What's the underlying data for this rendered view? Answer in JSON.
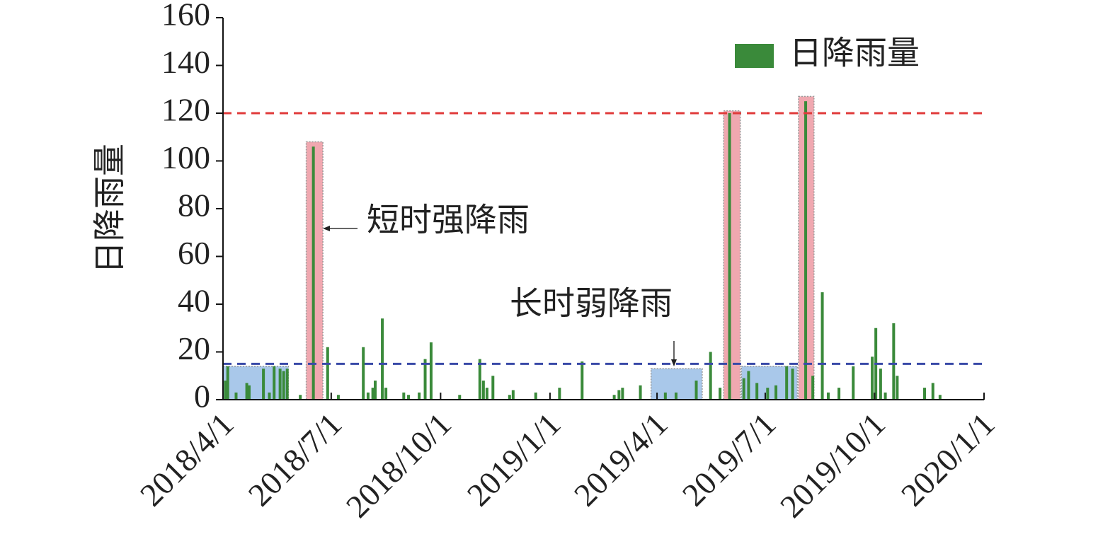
{
  "chart_data": {
    "type": "bar",
    "ylabel": "日降雨量",
    "xlim": [
      "2018/4/1",
      "2020/1/1"
    ],
    "xticks": [
      "2018/4/1",
      "2018/7/1",
      "2018/10/1",
      "2019/1/1",
      "2019/4/1",
      "2019/7/1",
      "2019/10/1",
      "2020/1/1"
    ],
    "ylim": [
      0,
      160
    ],
    "yticks": [
      0,
      20,
      40,
      60,
      80,
      100,
      120,
      140,
      160
    ],
    "legend": "top-right",
    "x": [
      "2018/4/3",
      "2018/4/5",
      "2018/4/12",
      "2018/4/21",
      "2018/4/23",
      "2018/5/5",
      "2018/5/10",
      "2018/5/14",
      "2018/5/19",
      "2018/5/22",
      "2018/5/25",
      "2018/6/5",
      "2018/6/16",
      "2018/6/28",
      "2018/7/7",
      "2018/7/28",
      "2018/8/1",
      "2018/8/5",
      "2018/8/7",
      "2018/8/13",
      "2018/8/16",
      "2018/8/31",
      "2018/9/4",
      "2018/9/13",
      "2018/9/18",
      "2018/9/23",
      "2018/10/17",
      "2018/11/3",
      "2018/11/6",
      "2018/11/9",
      "2018/11/14",
      "2018/11/28",
      "2018/12/1",
      "2018/12/20",
      "2019/1/9",
      "2019/1/28",
      "2019/2/24",
      "2019/2/28",
      "2019/3/3",
      "2019/3/18",
      "2019/4/8",
      "2019/4/17",
      "2019/5/4",
      "2019/5/16",
      "2019/5/24",
      "2019/6/1",
      "2019/6/13",
      "2019/6/17",
      "2019/6/24",
      "2019/7/3",
      "2019/7/10",
      "2019/7/19",
      "2019/7/24",
      "2019/8/4",
      "2019/8/10",
      "2019/8/18",
      "2019/8/23",
      "2019/9/1",
      "2019/9/13",
      "2019/9/29",
      "2019/10/2",
      "2019/10/6",
      "2019/10/10",
      "2019/10/17",
      "2019/10/20",
      "2019/11/12",
      "2019/11/19",
      "2019/11/25"
    ],
    "series": [
      {
        "name": "日降雨量",
        "color": "#3a8a3a",
        "values": [
          8,
          14,
          3,
          7,
          6,
          13,
          3,
          14,
          13,
          12,
          13,
          2,
          106,
          22,
          2,
          22,
          3,
          5,
          8,
          34,
          5,
          3,
          2,
          3,
          17,
          24,
          2,
          17,
          8,
          5,
          10,
          2,
          4,
          3,
          5,
          16,
          2,
          4,
          5,
          6,
          3,
          3,
          8,
          20,
          5,
          120,
          9,
          12,
          7,
          5,
          6,
          14,
          13,
          125,
          10,
          45,
          3,
          5,
          14,
          18,
          30,
          13,
          3,
          32,
          10,
          5,
          7,
          2
        ]
      }
    ],
    "reference_lines": [
      {
        "value": 120,
        "color": "#e03a3a"
      },
      {
        "value": 15,
        "color": "#3a4aa8"
      }
    ],
    "regions": [
      {
        "start": "2018/4/1",
        "end": "2018/5/26",
        "top": 14,
        "color": "#a9c8ea"
      },
      {
        "start": "2018/6/10",
        "end": "2018/6/24",
        "top": 108,
        "color": "#f0a8b0"
      },
      {
        "start": "2019/3/27",
        "end": "2019/5/9",
        "top": 13,
        "color": "#a9c8ea"
      },
      {
        "start": "2019/5/27",
        "end": "2019/6/10",
        "top": 121,
        "color": "#f0a8b0"
      },
      {
        "start": "2019/6/11",
        "end": "2019/7/28",
        "top": 14,
        "color": "#a9c8ea"
      },
      {
        "start": "2019/7/29",
        "end": "2019/8/11",
        "top": 127,
        "color": "#f0a8b0"
      }
    ],
    "annotations": [
      "短时强降雨",
      "长时弱降雨"
    ]
  }
}
